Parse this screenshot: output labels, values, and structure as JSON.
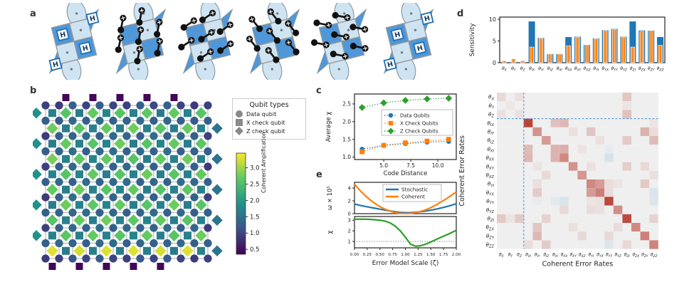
{
  "panel_labels": {
    "a": "a",
    "b": "b",
    "c": "c",
    "d": "d",
    "e": "e"
  },
  "colors": {
    "blue": "#1f77b4",
    "orange": "#ff7f0e",
    "green": "#2ca02c",
    "heat_pos": "#b63529",
    "heat_neg": "#7fb4d1",
    "heat_zero": "#efefef",
    "dashed_guide": "#5b9bd5",
    "tile_light": "#cfe4f2",
    "tile_dark": "#4f97d8",
    "boundary_purple": "#440154",
    "legend_gray": "#8a8a8a",
    "axis": "#222222"
  },
  "panel_a": {
    "gate_label": "H",
    "steps": [
      {
        "type": "hadamard",
        "name": "hadamard-layer-start"
      },
      {
        "type": "cnot",
        "angle": -65,
        "name": "cnot-layer-1"
      },
      {
        "type": "cnot",
        "angle": -20,
        "name": "cnot-layer-2"
      },
      {
        "type": "cnot",
        "angle": -115,
        "name": "cnot-layer-3"
      },
      {
        "type": "cnot",
        "angle": 25,
        "name": "cnot-layer-4"
      },
      {
        "type": "hadamard",
        "name": "hadamard-layer-end"
      }
    ]
  },
  "panel_b": {
    "legend": {
      "title": "Qubit types",
      "items": [
        {
          "shape": "circle",
          "label": "Data qubit"
        },
        {
          "shape": "square",
          "label": "X check qubit"
        },
        {
          "shape": "diamond",
          "label": "Z check qubit"
        }
      ]
    },
    "colorbar": {
      "label": "Coherent Amplification",
      "ticks": [
        0.5,
        1.0,
        1.5,
        2.0,
        2.5,
        3.0
      ],
      "vmin": 0.35,
      "vmax": 3.45
    },
    "chart_data": {
      "type": "heatmap",
      "grid": {
        "cols": 13,
        "rows": 11
      },
      "data_qubits": [
        [
          0.95,
          0.9,
          1.3,
          1.0,
          1.3,
          1.0,
          0.95,
          1.3,
          1.05,
          1.3,
          1.0,
          0.9,
          0.95
        ],
        [
          1.3,
          1.25,
          1.4,
          1.3,
          1.45,
          1.3,
          1.35,
          1.45,
          1.3,
          1.4,
          1.3,
          1.25,
          1.3
        ],
        [
          0.9,
          1.3,
          1.35,
          1.45,
          1.3,
          1.4,
          1.35,
          1.3,
          1.45,
          1.3,
          1.4,
          1.3,
          0.95
        ],
        [
          1.3,
          1.35,
          1.45,
          1.3,
          1.4,
          1.45,
          1.3,
          1.4,
          1.3,
          1.45,
          1.3,
          1.35,
          1.3
        ],
        [
          0.95,
          1.3,
          1.4,
          1.35,
          1.45,
          1.3,
          1.4,
          1.35,
          1.3,
          1.4,
          1.45,
          1.3,
          0.9
        ],
        [
          1.3,
          1.4,
          1.3,
          1.45,
          1.3,
          1.4,
          1.45,
          1.3,
          1.4,
          1.3,
          1.45,
          1.4,
          1.3
        ],
        [
          0.9,
          1.3,
          1.45,
          1.3,
          1.4,
          1.35,
          1.3,
          1.45,
          1.3,
          1.4,
          1.3,
          1.35,
          0.95
        ],
        [
          1.3,
          1.35,
          1.4,
          1.45,
          1.3,
          1.4,
          1.3,
          1.35,
          1.45,
          1.3,
          1.4,
          1.3,
          1.3
        ],
        [
          0.95,
          1.3,
          1.4,
          1.3,
          1.45,
          1.3,
          1.4,
          1.3,
          1.35,
          1.45,
          1.3,
          1.4,
          0.9
        ],
        [
          1.3,
          1.4,
          1.35,
          1.3,
          1.4,
          1.45,
          1.3,
          1.4,
          1.3,
          1.35,
          1.4,
          1.3,
          1.3
        ],
        [
          0.9,
          0.95,
          1.2,
          1.0,
          1.25,
          1.0,
          0.95,
          1.2,
          1.0,
          1.25,
          1.0,
          0.9,
          0.95
        ]
      ],
      "check_qubits": [
        [
          1.7,
          2.6,
          1.65,
          2.7,
          1.75,
          2.6,
          1.7,
          2.65,
          1.6,
          2.7,
          1.7,
          2.6
        ],
        [
          2.75,
          1.65,
          2.6,
          1.7,
          2.7,
          1.65,
          2.75,
          1.7,
          2.6,
          1.65,
          2.7,
          1.7
        ],
        [
          1.65,
          2.7,
          1.7,
          2.6,
          1.7,
          2.75,
          1.65,
          2.6,
          1.75,
          2.7,
          1.65,
          2.65
        ],
        [
          2.8,
          1.7,
          2.65,
          1.75,
          2.7,
          1.7,
          2.6,
          1.65,
          2.7,
          1.7,
          2.75,
          1.65
        ],
        [
          1.7,
          2.6,
          1.75,
          2.7,
          1.65,
          2.6,
          1.7,
          2.75,
          1.65,
          2.6,
          1.7,
          2.7
        ],
        [
          2.7,
          1.65,
          2.75,
          1.7,
          2.6,
          1.75,
          2.7,
          1.65,
          2.6,
          1.7,
          2.65,
          1.7
        ],
        [
          1.65,
          2.75,
          1.7,
          2.65,
          1.75,
          2.7,
          1.65,
          2.6,
          1.7,
          2.75,
          1.65,
          2.6
        ],
        [
          2.6,
          1.7,
          2.7,
          1.65,
          2.75,
          1.7,
          2.65,
          1.75,
          2.7,
          1.65,
          2.6,
          1.7
        ],
        [
          1.7,
          2.65,
          1.65,
          2.7,
          1.7,
          2.6,
          1.75,
          2.7,
          1.65,
          2.6,
          1.7,
          2.75
        ],
        [
          3.3,
          1.6,
          3.25,
          1.65,
          3.3,
          1.6,
          3.3,
          1.65,
          3.25,
          1.6,
          3.3,
          1.7
        ]
      ],
      "boundary": {
        "top_squares": {
          "cols": [
            1,
            3,
            5,
            7,
            9
          ],
          "value": 0.4
        },
        "bottom_squares": {
          "cols": [
            0,
            2,
            4,
            6,
            8
          ],
          "value": 0.4
        },
        "left_diamonds": {
          "rows": [
            0,
            2,
            4,
            6,
            8
          ],
          "value": 1.9
        },
        "right_diamonds": {
          "rows": [
            1,
            3,
            5,
            7,
            9
          ],
          "value": 1.55
        }
      }
    }
  },
  "panel_c": {
    "chart_data": {
      "type": "line",
      "x": [
        3,
        5,
        7,
        9,
        11
      ],
      "series": [
        {
          "name": "Data Qubits",
          "color": "#1f77b4",
          "marker": "circle",
          "values": [
            1.22,
            1.33,
            1.38,
            1.42,
            1.44
          ]
        },
        {
          "name": "X Check Qubits",
          "color": "#ff7f0e",
          "marker": "square",
          "values": [
            1.15,
            1.33,
            1.4,
            1.45,
            1.5
          ]
        },
        {
          "name": "Z Check Qubits",
          "color": "#2ca02c",
          "marker": "diamond",
          "values": [
            2.4,
            2.53,
            2.6,
            2.64,
            2.66
          ]
        }
      ],
      "xlabel": "Code Distance",
      "ylabel": "Average χ",
      "xticks": [
        "5.0",
        "7.5",
        "10.0"
      ],
      "xtick_vals": [
        5,
        7.5,
        10
      ],
      "yticks": [
        "1.0",
        "1.5",
        "2.0",
        "2.5"
      ],
      "ytick_vals": [
        1.0,
        1.5,
        2.0,
        2.5
      ],
      "xlim": [
        2.3,
        11.7
      ],
      "ylim": [
        0.93,
        2.78
      ],
      "legend_position": "center right",
      "grid": false
    }
  },
  "panel_d": {
    "bar_chart": {
      "type": "bar",
      "ylabel": "Sensitivity",
      "category_subscripts": [
        "X",
        "Y",
        "Z",
        "IX",
        "IY",
        "IZ",
        "XI",
        "XX",
        "XY",
        "XZ",
        "YI",
        "YX",
        "YY",
        "YZ",
        "ZI",
        "ZX",
        "ZY",
        "ZZ"
      ],
      "series": [
        {
          "name": "blue",
          "color": "#1f77b4",
          "values": [
            0.15,
            0.1,
            0.1,
            9.5,
            5.7,
            2.0,
            2.0,
            5.9,
            6.0,
            4.1,
            5.6,
            7.5,
            7.8,
            6.0,
            9.5,
            7.4,
            7.4,
            5.9
          ]
        },
        {
          "name": "orange-hatched",
          "color": "#ff7f0e",
          "values": [
            0.45,
            0.9,
            0.45,
            3.6,
            5.6,
            2.0,
            2.0,
            3.9,
            5.9,
            4.0,
            5.5,
            7.4,
            7.7,
            5.9,
            3.6,
            7.2,
            7.4,
            4.0
          ]
        }
      ],
      "yticks": [
        0,
        5,
        10
      ],
      "ylim": [
        0,
        10.5
      ]
    },
    "heatmap": {
      "type": "heatmap",
      "xlabel": "Coherent Error Rates",
      "ylabel": "Coherent Error Rates",
      "labels_subscripts": [
        "X",
        "Y",
        "Z",
        "IX",
        "IY",
        "IZ",
        "XI",
        "XX",
        "XY",
        "XZ",
        "YI",
        "YX",
        "YY",
        "YZ",
        "ZI",
        "ZX",
        "ZY",
        "ZZ"
      ],
      "divider_after_index": 3,
      "matrix": [
        [
          0.12,
          0,
          0.08,
          0,
          0,
          0,
          0,
          0,
          0,
          0,
          0,
          0,
          0,
          0,
          0.22,
          0,
          0,
          0
        ],
        [
          0,
          0.05,
          0,
          0,
          0,
          0,
          0,
          0,
          0,
          0,
          0,
          0,
          0,
          0,
          0.06,
          0,
          0,
          0
        ],
        [
          0.08,
          0,
          0.08,
          0,
          0,
          0,
          0,
          0,
          0,
          0,
          0,
          0,
          0,
          0,
          0.25,
          0,
          0,
          0
        ],
        [
          0,
          0,
          0,
          0.92,
          0,
          0,
          0.25,
          0.3,
          0,
          0,
          0,
          0,
          0,
          0,
          0,
          0,
          0,
          0.06
        ],
        [
          0,
          0,
          0,
          0,
          0.5,
          0,
          0,
          0,
          0.08,
          0,
          0.22,
          0,
          0,
          0,
          0,
          0,
          0.33,
          0.1
        ],
        [
          0,
          0,
          0,
          0,
          0,
          0.45,
          0,
          0,
          0,
          0,
          0,
          0.08,
          0,
          0,
          0.2,
          0,
          0,
          0.28
        ],
        [
          0,
          0,
          0,
          0.28,
          0,
          0,
          0.32,
          0.35,
          0,
          0.06,
          0,
          0,
          -0.06,
          0,
          0,
          0,
          0,
          0
        ],
        [
          0,
          0,
          0,
          0.3,
          0,
          0,
          0.32,
          0.55,
          0,
          0,
          0,
          0,
          -0.22,
          0,
          0,
          0,
          0,
          0
        ],
        [
          0,
          0,
          0,
          0,
          0.06,
          0,
          0,
          0,
          0.5,
          0,
          0.08,
          0,
          0,
          0,
          0.18,
          0,
          0.12,
          0
        ],
        [
          0,
          0,
          0,
          0,
          0,
          0.12,
          0,
          0,
          0,
          0.48,
          0,
          0,
          0,
          0,
          0,
          0,
          0,
          0.08
        ],
        [
          0,
          0,
          0,
          0,
          0.08,
          0,
          0,
          0,
          0,
          0,
          0.55,
          0.45,
          0.1,
          0.06,
          0,
          0,
          0.2,
          0
        ],
        [
          0,
          0,
          0,
          0,
          0.2,
          0,
          0,
          0,
          0,
          0,
          0.45,
          0.6,
          0.1,
          0,
          0,
          0,
          0,
          -0.18
        ],
        [
          0,
          0,
          0,
          0,
          -0.06,
          0,
          -0.1,
          -0.2,
          0,
          0,
          0.06,
          0.08,
          0.9,
          0,
          0,
          0,
          0,
          -0.16
        ],
        [
          0,
          0,
          0,
          0,
          0,
          0,
          0,
          0.12,
          0,
          0,
          0.1,
          0.08,
          0,
          0.52,
          0,
          0,
          0,
          0
        ],
        [
          0.2,
          0.06,
          0.2,
          0,
          0,
          0.15,
          0,
          0,
          0,
          0,
          0,
          0,
          0,
          0,
          0.88,
          0,
          0,
          0.15
        ],
        [
          0,
          0,
          0,
          0,
          0.22,
          0,
          0,
          0,
          0.08,
          0,
          0,
          0,
          0,
          0.1,
          0,
          0.55,
          0,
          0
        ],
        [
          0,
          0,
          0,
          0,
          0.3,
          0,
          0,
          0,
          0,
          0.12,
          0,
          0,
          0.12,
          0,
          0,
          0,
          0.6,
          0
        ],
        [
          0,
          0,
          0,
          0.1,
          0,
          0.2,
          0,
          0,
          0,
          0,
          0,
          0,
          -0.15,
          0,
          0.12,
          0,
          0,
          0.58
        ]
      ]
    }
  },
  "panel_e": {
    "chart_data": [
      {
        "type": "line",
        "ylabel": "ω × 10⁵",
        "yticks": [
          0,
          2,
          4
        ],
        "ylim": [
          0,
          4.9
        ],
        "x_start": 0,
        "x_step": 0.1,
        "series": [
          {
            "name": "Stochastic",
            "color": "#1f77b4",
            "values": [
              1.5,
              1.32,
              1.15,
              1.0,
              0.85,
              0.7,
              0.55,
              0.42,
              0.3,
              0.2,
              0.15,
              0.16,
              0.22,
              0.3,
              0.42,
              0.55,
              0.7,
              0.88,
              1.08,
              1.3,
              1.55
            ]
          },
          {
            "name": "Coherent",
            "color": "#ff7f0e",
            "values": [
              4.6,
              3.7,
              2.9,
              2.2,
              1.6,
              1.1,
              0.7,
              0.4,
              0.15,
              0.05,
              0.02,
              0.05,
              0.15,
              0.35,
              0.6,
              0.95,
              1.35,
              1.8,
              2.3,
              2.85,
              3.4
            ]
          }
        ],
        "legend_position": "upper center"
      },
      {
        "type": "line",
        "ylabel": "χ",
        "yticks": [
          1,
          2,
          3
        ],
        "ylim": [
          0.4,
          3.35
        ],
        "x_start": 0,
        "x_step": 0.1,
        "series": [
          {
            "name": "chi",
            "color": "#2ca02c",
            "values": [
              3.1,
              3.1,
              3.1,
              3.08,
              3.05,
              3.0,
              2.92,
              2.75,
              2.45,
              2.0,
              1.4,
              0.75,
              0.55,
              0.6,
              0.75,
              0.95,
              1.18,
              1.4,
              1.6,
              1.82,
              2.05
            ]
          }
        ],
        "hline_dotted": 1.0,
        "xlabel": "Error Model Scale (ζ)",
        "xticks": [
          "0.00",
          "0.25",
          "0.50",
          "0.75",
          "1.00",
          "1.25",
          "1.50",
          "1.75",
          "2.00"
        ],
        "xlim": [
          0,
          2
        ]
      }
    ]
  }
}
